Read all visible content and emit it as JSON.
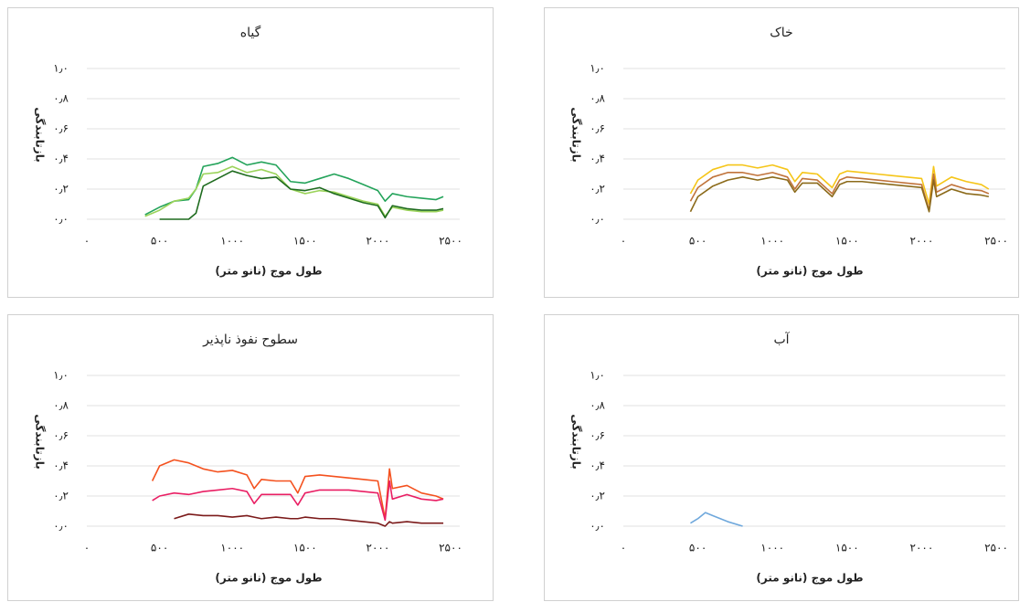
{
  "chart_data": [
    {
      "type": "line",
      "title": "گیاه",
      "x_label": "طول موج (نانو متر)",
      "y_label": "بازتابندگی",
      "x": [
        400,
        500,
        600,
        700,
        750,
        800,
        900,
        1000,
        1100,
        1200,
        1300,
        1400,
        1500,
        1600,
        1700,
        1800,
        1900,
        2000,
        2050,
        2100,
        2200,
        2300,
        2400,
        2450
      ],
      "series": [
        {
          "color": "#23a35a",
          "values": [
            0.03,
            0.08,
            0.12,
            0.13,
            0.2,
            0.35,
            0.37,
            0.41,
            0.36,
            0.38,
            0.36,
            0.25,
            0.24,
            0.27,
            0.3,
            0.27,
            0.23,
            0.19,
            0.12,
            0.17,
            0.15,
            0.14,
            0.13,
            0.15
          ]
        },
        {
          "color": "#9bd35a",
          "values": [
            0.02,
            0.06,
            0.12,
            0.14,
            0.2,
            0.3,
            0.31,
            0.35,
            0.31,
            0.33,
            0.3,
            0.2,
            0.17,
            0.19,
            0.18,
            0.15,
            0.12,
            0.1,
            0.02,
            0.08,
            0.06,
            0.05,
            0.05,
            0.06
          ]
        },
        {
          "color": "#1e6b1e",
          "values": [
            null,
            0.0,
            0.0,
            0.0,
            0.04,
            0.22,
            0.27,
            0.32,
            0.29,
            0.27,
            0.28,
            0.2,
            0.19,
            0.21,
            0.17,
            0.14,
            0.11,
            0.09,
            0.01,
            0.09,
            0.07,
            0.06,
            0.06,
            0.07
          ]
        }
      ],
      "xlim": [
        0,
        2500
      ],
      "ylim": [
        0,
        1
      ],
      "xticks": [
        {
          "value": 0,
          "label": "۰"
        },
        {
          "value": 500,
          "label": "۵۰۰"
        },
        {
          "value": 1000,
          "label": "۱۰۰۰"
        },
        {
          "value": 1500,
          "label": "۱۵۰۰"
        },
        {
          "value": 2000,
          "label": "۲۰۰۰"
        },
        {
          "value": 2500,
          "label": "۲۵۰۰"
        }
      ],
      "yticks": [
        {
          "value": 0,
          "label": "۰٫۰"
        },
        {
          "value": 0.2,
          "label": "۰٫۲"
        },
        {
          "value": 0.4,
          "label": "۰٫۴"
        },
        {
          "value": 0.6,
          "label": "۰٫۶"
        },
        {
          "value": 0.8,
          "label": "۰٫۸"
        },
        {
          "value": 1,
          "label": "۱٫۰"
        }
      ],
      "grid": true
    },
    {
      "type": "line",
      "title": "خاک",
      "x_label": "طول موج (نانو متر)",
      "y_label": "بازتابندگی",
      "x": [
        450,
        500,
        600,
        700,
        800,
        900,
        1000,
        1100,
        1150,
        1200,
        1300,
        1400,
        1450,
        1500,
        1600,
        1700,
        1800,
        1900,
        2000,
        2050,
        2080,
        2100,
        2200,
        2300,
        2400,
        2450
      ],
      "series": [
        {
          "color": "#f5c518",
          "values": [
            0.17,
            0.26,
            0.33,
            0.36,
            0.36,
            0.34,
            0.36,
            0.33,
            0.25,
            0.31,
            0.3,
            0.21,
            0.3,
            0.32,
            0.31,
            0.3,
            0.29,
            0.28,
            0.27,
            0.1,
            0.35,
            0.22,
            0.28,
            0.25,
            0.23,
            0.2
          ]
        },
        {
          "color": "#c0733b",
          "values": [
            0.12,
            0.21,
            0.28,
            0.31,
            0.31,
            0.29,
            0.31,
            0.28,
            0.2,
            0.27,
            0.26,
            0.17,
            0.26,
            0.28,
            0.27,
            0.26,
            0.25,
            0.24,
            0.23,
            0.06,
            0.3,
            0.18,
            0.23,
            0.2,
            0.19,
            0.17
          ]
        },
        {
          "color": "#8b6a1a",
          "values": [
            0.05,
            0.15,
            0.22,
            0.26,
            0.28,
            0.26,
            0.28,
            0.26,
            0.18,
            0.24,
            0.24,
            0.15,
            0.23,
            0.25,
            0.25,
            0.24,
            0.23,
            0.22,
            0.21,
            0.05,
            0.26,
            0.15,
            0.2,
            0.17,
            0.16,
            0.15
          ]
        }
      ],
      "xlim": [
        0,
        2500
      ],
      "ylim": [
        0,
        1
      ],
      "xticks": [
        {
          "value": 0,
          "label": "۰"
        },
        {
          "value": 500,
          "label": "۵۰۰"
        },
        {
          "value": 1000,
          "label": "۱۰۰۰"
        },
        {
          "value": 1500,
          "label": "۱۵۰۰"
        },
        {
          "value": 2000,
          "label": "۲۰۰۰"
        },
        {
          "value": 2500,
          "label": "۲۵۰۰"
        }
      ],
      "yticks": [
        {
          "value": 0,
          "label": "۰٫۰"
        },
        {
          "value": 0.2,
          "label": "۰٫۲"
        },
        {
          "value": 0.4,
          "label": "۰٫۴"
        },
        {
          "value": 0.6,
          "label": "۰٫۶"
        },
        {
          "value": 0.8,
          "label": "۰٫۸"
        },
        {
          "value": 1,
          "label": "۱٫۰"
        }
      ],
      "grid": true
    },
    {
      "type": "line",
      "title": "سطوح نفوذ ناپذیر",
      "x_label": "طول موج (نانو متر)",
      "y_label": "بازتابندگی",
      "x": [
        450,
        500,
        600,
        700,
        800,
        900,
        1000,
        1100,
        1150,
        1200,
        1300,
        1400,
        1450,
        1500,
        1600,
        1700,
        1800,
        1900,
        2000,
        2050,
        2080,
        2100,
        2200,
        2300,
        2400,
        2450
      ],
      "series": [
        {
          "color": "#f4511e",
          "values": [
            0.3,
            0.4,
            0.44,
            0.42,
            0.38,
            0.36,
            0.37,
            0.34,
            0.25,
            0.31,
            0.3,
            0.3,
            0.22,
            0.33,
            0.34,
            0.33,
            0.32,
            0.31,
            0.3,
            0.05,
            0.38,
            0.25,
            0.27,
            0.22,
            0.2,
            0.18
          ]
        },
        {
          "color": "#e91e63",
          "values": [
            0.17,
            0.2,
            0.22,
            0.21,
            0.23,
            0.24,
            0.25,
            0.23,
            0.15,
            0.21,
            0.21,
            0.21,
            0.14,
            0.22,
            0.24,
            0.24,
            0.24,
            0.23,
            0.22,
            0.04,
            0.3,
            0.18,
            0.21,
            0.18,
            0.17,
            0.18
          ]
        },
        {
          "color": "#7b1a1a",
          "values": [
            null,
            null,
            0.05,
            0.08,
            0.07,
            0.07,
            0.06,
            0.07,
            0.06,
            0.05,
            0.06,
            0.05,
            0.05,
            0.06,
            0.05,
            0.05,
            0.04,
            0.03,
            0.02,
            0.0,
            0.03,
            0.02,
            0.03,
            0.02,
            0.02,
            0.02
          ]
        }
      ],
      "xlim": [
        0,
        2500
      ],
      "ylim": [
        0,
        1
      ],
      "xticks": [
        {
          "value": 0,
          "label": "۰"
        },
        {
          "value": 500,
          "label": "۵۰۰"
        },
        {
          "value": 1000,
          "label": "۱۰۰۰"
        },
        {
          "value": 1500,
          "label": "۱۵۰۰"
        },
        {
          "value": 2000,
          "label": "۲۰۰۰"
        },
        {
          "value": 2500,
          "label": "۲۵۰۰"
        }
      ],
      "yticks": [
        {
          "value": 0,
          "label": "۰٫۰"
        },
        {
          "value": 0.2,
          "label": "۰٫۲"
        },
        {
          "value": 0.4,
          "label": "۰٫۴"
        },
        {
          "value": 0.6,
          "label": "۰٫۶"
        },
        {
          "value": 0.8,
          "label": "۰٫۸"
        },
        {
          "value": 1,
          "label": "۱٫۰"
        }
      ],
      "grid": true
    },
    {
      "type": "line",
      "title": "آب",
      "x_label": "طول موج (نانو متر)",
      "y_label": "بازتابندگی",
      "x": [
        450,
        500,
        550,
        600,
        700,
        800
      ],
      "series": [
        {
          "color": "#6fa8dc",
          "values": [
            0.02,
            0.05,
            0.09,
            0.07,
            0.03,
            0.0
          ]
        }
      ],
      "xlim": [
        0,
        2500
      ],
      "ylim": [
        0,
        1
      ],
      "xticks": [
        {
          "value": 0,
          "label": "۰"
        },
        {
          "value": 500,
          "label": "۵۰۰"
        },
        {
          "value": 1000,
          "label": "۱۰۰۰"
        },
        {
          "value": 1500,
          "label": "۱۵۰۰"
        },
        {
          "value": 2000,
          "label": "۲۰۰۰"
        },
        {
          "value": 2500,
          "label": "۲۵۰۰"
        }
      ],
      "yticks": [
        {
          "value": 0,
          "label": "۰٫۰"
        },
        {
          "value": 0.2,
          "label": "۰٫۲"
        },
        {
          "value": 0.4,
          "label": "۰٫۴"
        },
        {
          "value": 0.6,
          "label": "۰٫۶"
        },
        {
          "value": 0.8,
          "label": "۰٫۸"
        },
        {
          "value": 1,
          "label": "۱٫۰"
        }
      ],
      "grid": true
    }
  ]
}
